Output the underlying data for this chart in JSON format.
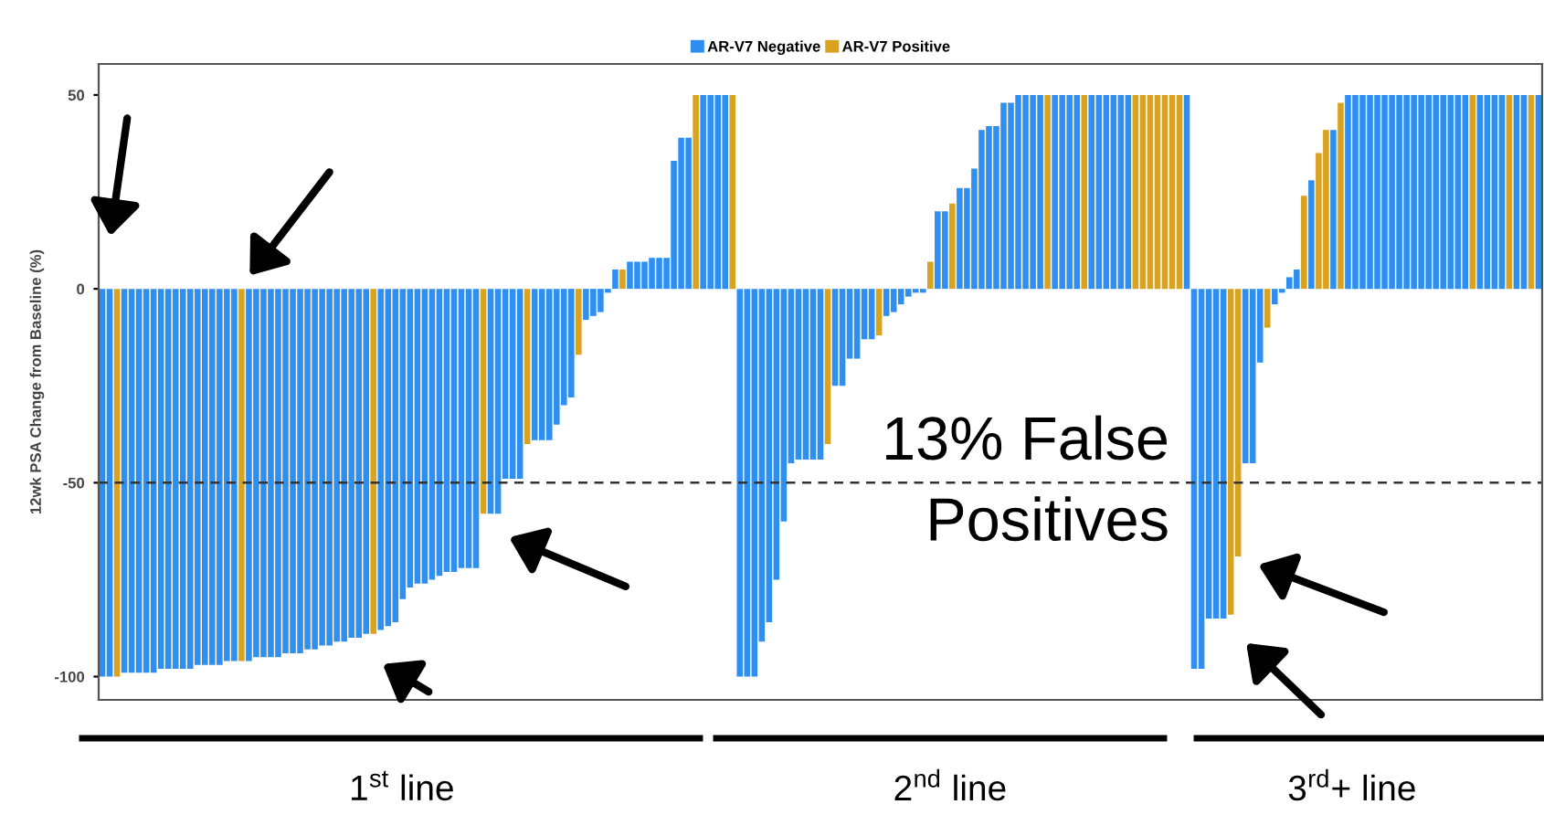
{
  "chart_data": {
    "type": "bar",
    "ylabel": "12wk PSA Change from Baseline (%)",
    "categories": [
      null,
      null,
      null,
      null,
      null,
      null,
      null,
      null,
      null,
      null,
      null,
      null,
      null,
      null,
      null,
      null,
      null,
      null,
      null,
      null,
      null,
      null,
      null,
      null,
      null,
      null,
      null,
      null,
      null,
      null,
      null,
      null,
      null,
      null,
      null,
      null,
      null,
      null,
      null,
      null,
      null,
      null,
      null,
      null,
      null,
      null,
      null,
      null,
      null,
      null,
      null,
      null,
      null,
      null,
      null,
      null,
      null,
      null,
      null,
      null,
      null,
      null,
      null,
      null,
      null,
      null,
      null,
      null,
      null,
      null,
      null,
      null,
      null,
      null,
      null,
      null,
      null,
      null,
      null,
      null,
      null,
      null,
      null,
      null,
      null,
      null,
      null,
      null,
      null,
      null,
      null,
      null,
      null,
      null,
      null,
      null,
      null,
      null,
      null,
      null,
      null,
      null,
      null,
      null,
      null,
      null,
      null,
      null,
      null,
      null,
      null,
      null,
      null,
      null,
      null,
      null,
      null,
      null,
      null,
      null,
      null,
      null,
      null,
      null,
      null,
      null,
      null,
      null,
      null,
      null,
      null,
      null,
      null,
      null,
      null,
      null,
      null,
      null,
      null,
      null,
      null,
      null,
      null,
      null,
      null,
      null,
      null,
      null,
      null,
      null,
      null,
      null,
      null,
      null,
      null,
      null,
      null,
      null,
      null,
      null,
      null,
      null,
      null,
      null,
      null,
      null,
      null,
      null,
      null,
      null,
      null,
      null,
      null,
      null,
      null,
      null,
      null,
      null,
      null,
      null,
      null,
      null,
      null,
      null,
      null,
      null,
      null,
      null,
      null,
      null,
      null,
      null,
      null,
      null,
      null,
      null,
      null
    ],
    "series": [
      {
        "name": "AR-V7 Negative",
        "color": "#2e8ff0",
        "values": [
          -100,
          -100,
          null,
          -99,
          -99,
          -99,
          -99,
          -99,
          -98,
          -98,
          -98,
          -98,
          -98,
          -97,
          -97,
          -97,
          -97,
          -96,
          -96,
          null,
          -96,
          -95,
          -95,
          -95,
          -95,
          -94,
          -94,
          -94,
          -93,
          -93,
          -92,
          -92,
          -91,
          -91,
          -90,
          -90,
          -89,
          null,
          -88,
          -87,
          -86,
          -80,
          -77,
          -76,
          -76,
          -75,
          -74,
          -73,
          -73,
          -72,
          -72,
          -72,
          null,
          -58,
          -58,
          -49,
          -49,
          -49,
          null,
          -39,
          -39,
          -39,
          -35,
          -30,
          -28,
          null,
          -8,
          -7,
          -6,
          -1,
          5,
          null,
          7,
          7,
          7,
          8,
          8,
          8,
          33,
          39,
          39,
          null,
          50,
          50,
          50,
          50,
          null,
          -100,
          -100,
          -100,
          -91,
          -86,
          -75,
          -60,
          -45,
          -44,
          -44,
          -44,
          -44,
          null,
          -25,
          -25,
          -18,
          -18,
          -13,
          -13,
          null,
          -7,
          -6,
          -4,
          -2,
          -1,
          -1,
          null,
          20,
          20,
          null,
          26,
          26,
          31,
          41,
          42,
          42,
          48,
          48,
          50,
          50,
          50,
          50,
          null,
          50,
          50,
          50,
          50,
          null,
          50,
          50,
          50,
          50,
          50,
          50,
          null,
          null,
          null,
          null,
          null,
          null,
          null,
          50,
          -98,
          -98,
          -85,
          -85,
          -85,
          null,
          null,
          -45,
          -45,
          -19,
          null,
          -4,
          -1,
          3,
          5,
          null,
          28,
          null,
          null,
          41,
          null,
          50,
          50,
          50,
          50,
          50,
          50,
          50,
          50,
          50,
          50,
          50,
          50,
          50,
          50,
          50,
          50,
          50,
          null,
          50,
          50,
          50,
          50,
          null,
          50,
          50,
          null,
          50
        ]
      },
      {
        "name": "AR-V7 Positive",
        "color": "#d9a21f",
        "values": [
          null,
          null,
          -100,
          null,
          null,
          null,
          null,
          null,
          null,
          null,
          null,
          null,
          null,
          null,
          null,
          null,
          null,
          null,
          null,
          -96,
          null,
          null,
          null,
          null,
          null,
          null,
          null,
          null,
          null,
          null,
          null,
          null,
          null,
          null,
          null,
          null,
          null,
          -89,
          null,
          null,
          null,
          null,
          null,
          null,
          null,
          null,
          null,
          null,
          null,
          null,
          null,
          null,
          -58,
          null,
          null,
          null,
          null,
          null,
          -40,
          null,
          null,
          null,
          null,
          null,
          null,
          -17,
          null,
          null,
          null,
          null,
          null,
          5,
          null,
          null,
          null,
          null,
          null,
          null,
          null,
          null,
          null,
          50,
          null,
          null,
          null,
          null,
          50,
          null,
          null,
          null,
          null,
          null,
          null,
          null,
          null,
          null,
          null,
          null,
          null,
          -40,
          null,
          null,
          null,
          null,
          null,
          null,
          -12,
          null,
          null,
          null,
          null,
          null,
          null,
          7,
          null,
          null,
          22,
          null,
          null,
          null,
          null,
          null,
          null,
          null,
          null,
          null,
          null,
          null,
          null,
          50,
          null,
          null,
          null,
          null,
          50,
          null,
          null,
          null,
          null,
          null,
          null,
          50,
          50,
          50,
          50,
          50,
          50,
          50,
          null,
          null,
          null,
          null,
          null,
          null,
          -84,
          -69,
          null,
          null,
          null,
          -10,
          null,
          null,
          null,
          null,
          24,
          null,
          35,
          41,
          null,
          48,
          null,
          null,
          null,
          null,
          null,
          null,
          null,
          null,
          null,
          null,
          null,
          null,
          null,
          null,
          null,
          null,
          null,
          50,
          null,
          null,
          null,
          null,
          50,
          null,
          null,
          50,
          null
        ]
      }
    ],
    "ylim": [
      -106,
      58
    ],
    "yticks": [
      -100,
      -50,
      0,
      50
    ],
    "ref_lines": [
      {
        "axis": "y",
        "value": -50,
        "line_style": "dashed",
        "color": "#333333"
      }
    ],
    "legend": "top",
    "annotations": [
      "13% False\nPositives",
      "1$^{st}$ line",
      "2$^{nd}$ line",
      "3$^{rd}$+ line"
    ]
  }
}
